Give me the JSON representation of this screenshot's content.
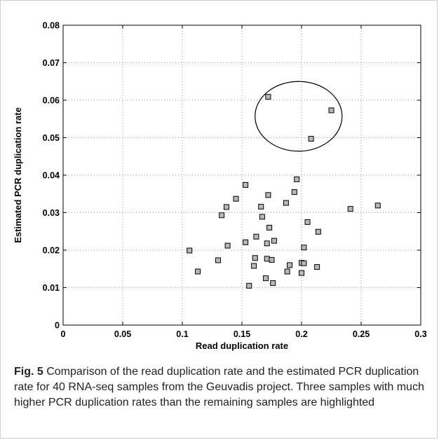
{
  "chart_data": {
    "type": "scatter",
    "title": "",
    "xlabel": "Read duplication rate",
    "ylabel": "Estimated PCR duplication rate",
    "xlim": [
      0,
      0.3
    ],
    "ylim": [
      0,
      0.08
    ],
    "xticks": [
      "0",
      "0.05",
      "0.1",
      "0.15",
      "0.2",
      "0.25",
      "0.3"
    ],
    "yticks": [
      "0",
      "0.01",
      "0.02",
      "0.03",
      "0.04",
      "0.05",
      "0.06",
      "0.07",
      "0.08"
    ],
    "grid": true,
    "marker": "square",
    "points": [
      {
        "x": 0.106,
        "y": 0.0199
      },
      {
        "x": 0.113,
        "y": 0.0143
      },
      {
        "x": 0.13,
        "y": 0.0173
      },
      {
        "x": 0.133,
        "y": 0.0293
      },
      {
        "x": 0.137,
        "y": 0.0315
      },
      {
        "x": 0.138,
        "y": 0.0212
      },
      {
        "x": 0.145,
        "y": 0.0337
      },
      {
        "x": 0.153,
        "y": 0.0374
      },
      {
        "x": 0.153,
        "y": 0.0221
      },
      {
        "x": 0.156,
        "y": 0.0105
      },
      {
        "x": 0.16,
        "y": 0.0158
      },
      {
        "x": 0.161,
        "y": 0.0179
      },
      {
        "x": 0.162,
        "y": 0.0236
      },
      {
        "x": 0.166,
        "y": 0.0316
      },
      {
        "x": 0.167,
        "y": 0.0289
      },
      {
        "x": 0.17,
        "y": 0.0125
      },
      {
        "x": 0.171,
        "y": 0.0177
      },
      {
        "x": 0.171,
        "y": 0.0218
      },
      {
        "x": 0.172,
        "y": 0.0347
      },
      {
        "x": 0.173,
        "y": 0.026
      },
      {
        "x": 0.175,
        "y": 0.0174
      },
      {
        "x": 0.176,
        "y": 0.0112
      },
      {
        "x": 0.177,
        "y": 0.0225
      },
      {
        "x": 0.187,
        "y": 0.0326
      },
      {
        "x": 0.188,
        "y": 0.0143
      },
      {
        "x": 0.19,
        "y": 0.016
      },
      {
        "x": 0.194,
        "y": 0.0355
      },
      {
        "x": 0.196,
        "y": 0.0389
      },
      {
        "x": 0.2,
        "y": 0.0139
      },
      {
        "x": 0.2,
        "y": 0.0166
      },
      {
        "x": 0.202,
        "y": 0.0165
      },
      {
        "x": 0.202,
        "y": 0.0207
      },
      {
        "x": 0.205,
        "y": 0.0275
      },
      {
        "x": 0.213,
        "y": 0.0155
      },
      {
        "x": 0.214,
        "y": 0.0249
      },
      {
        "x": 0.241,
        "y": 0.031
      },
      {
        "x": 0.264,
        "y": 0.0319
      },
      {
        "x": 0.172,
        "y": 0.0609
      },
      {
        "x": 0.208,
        "y": 0.0497
      },
      {
        "x": 0.225,
        "y": 0.0573
      }
    ],
    "highlight_ellipse": {
      "cx": 0.1975,
      "cy": 0.0557,
      "rx": 0.0365,
      "ry": 0.0093
    }
  },
  "caption": {
    "label": "Fig. 5",
    "text": " Comparison of the read duplication rate and the estimated PCR duplication rate for 40 RNA-seq samples from the Geuvadis project. Three samples with much higher PCR duplication rates than the remaining samples are highlighted"
  },
  "colors": {
    "marker_fill": "#b8b8b8",
    "marker_stroke": "#000000",
    "grid": "#9a9a9a",
    "frame": "#d0d0d0"
  }
}
